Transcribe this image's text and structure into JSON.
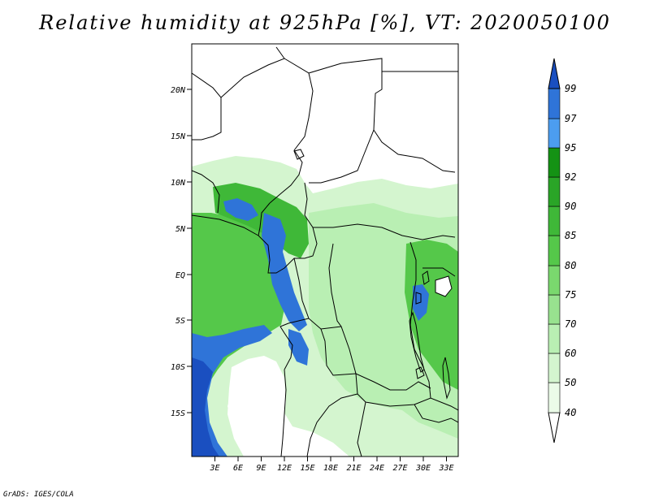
{
  "title": "Relative humidity at 925hPa [%], VT: 2020050100",
  "credit": "GrADS: IGES/COLA",
  "map": {
    "lat_ticks": [
      "20N",
      "15N",
      "10N",
      "5N",
      "EQ",
      "5S",
      "10S",
      "15S"
    ],
    "lon_ticks": [
      "3E",
      "6E",
      "9E",
      "12E",
      "15E",
      "18E",
      "21E",
      "24E",
      "27E",
      "30E",
      "33E"
    ],
    "colors": {
      "lt40": "#ffffff",
      "c40": "#ebfbe8",
      "c50": "#d4f5cf",
      "c60": "#b9efb3",
      "c70": "#98e28f",
      "c75": "#7ad86e",
      "c80": "#55c84a",
      "c85": "#3fb838",
      "c90": "#2aa527",
      "c92": "#149214",
      "c95": "#4c9df0",
      "c97": "#2f74d8",
      "c99": "#1a4fc0"
    }
  },
  "colorbar": {
    "labels": [
      "40",
      "50",
      "60",
      "70",
      "75",
      "80",
      "85",
      "90",
      "92",
      "95",
      "97",
      "99"
    ],
    "colors": [
      "#ebfbe8",
      "#d4f5cf",
      "#b9efb3",
      "#98e28f",
      "#7ad86e",
      "#55c84a",
      "#3fb838",
      "#2aa527",
      "#149214",
      "#4c9df0",
      "#2f74d8",
      "#1a4fc0"
    ]
  }
}
